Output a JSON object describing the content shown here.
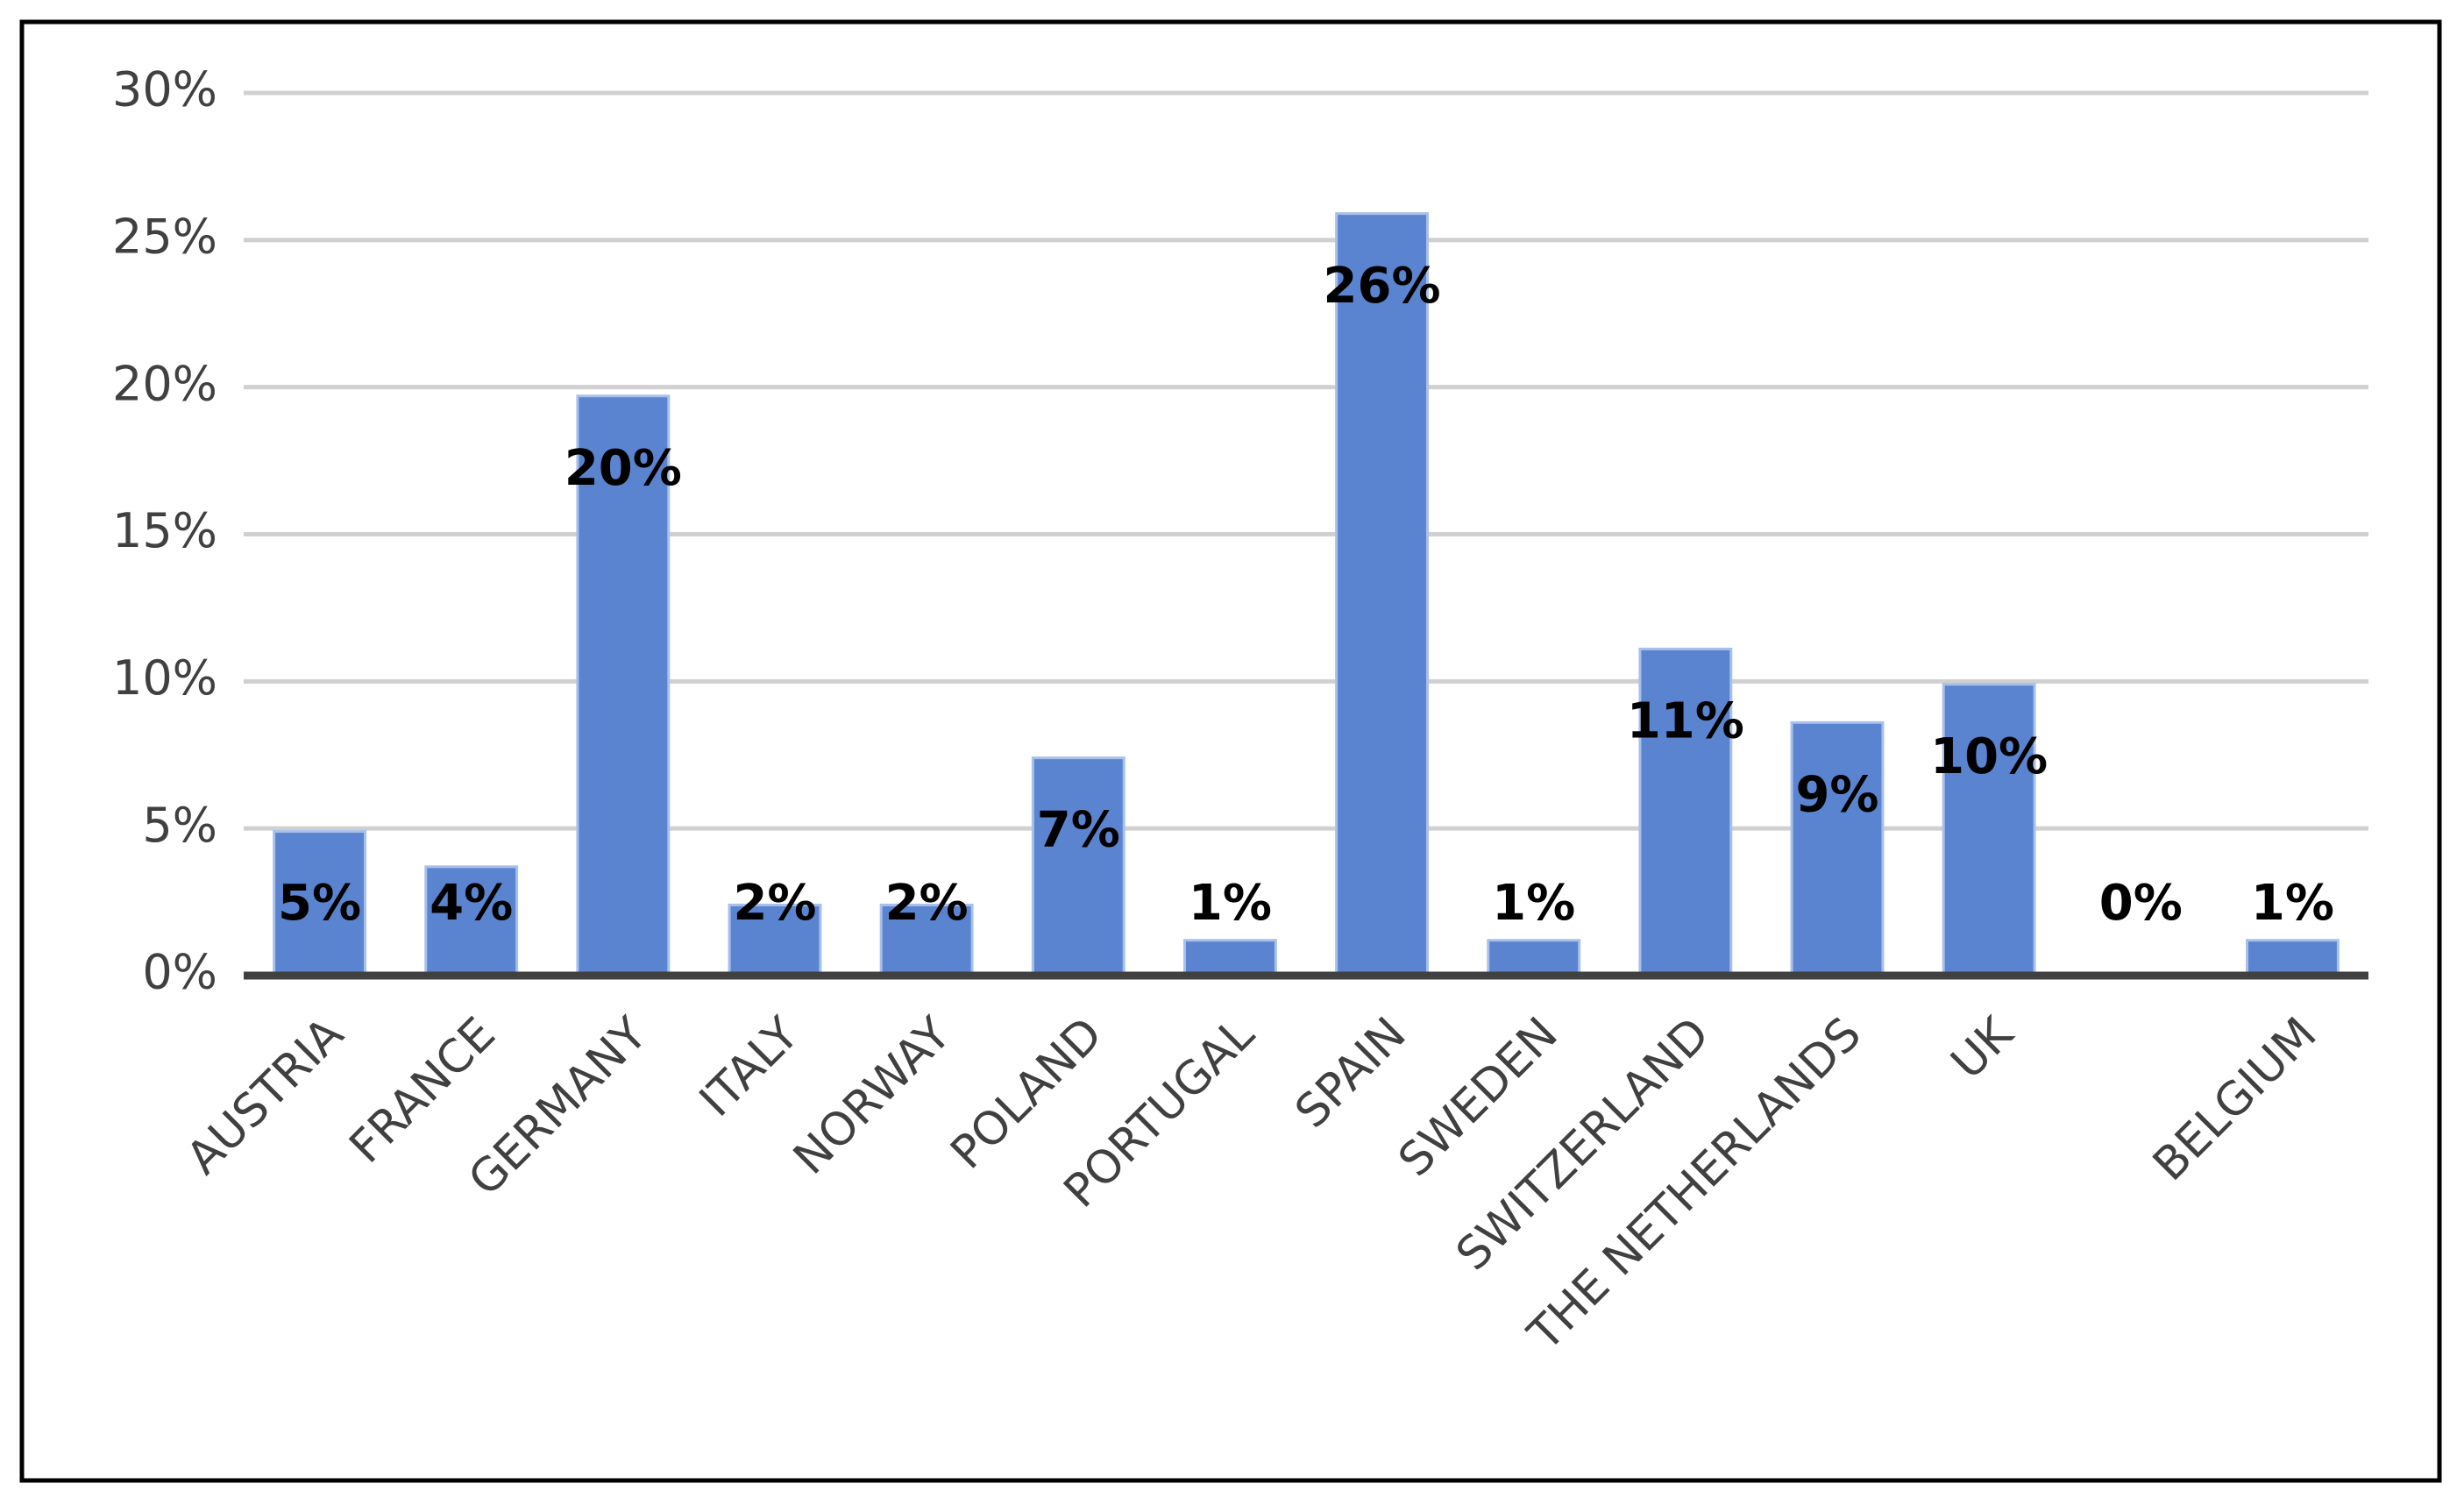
{
  "chart_data": {
    "type": "bar",
    "categories": [
      "AUSTRIA",
      "FRANCE",
      "GERMANY",
      "ITALY",
      "NORWAY",
      "POLAND",
      "PORTUGAL",
      "SPAIN",
      "SWEDEN",
      "SWITZERLAND",
      "THE NETHERLANDS",
      "UK",
      null,
      "BELGIUM"
    ],
    "values": [
      4.9,
      3.7,
      19.7,
      2.4,
      2.4,
      7.4,
      1.2,
      25.9,
      1.2,
      11.1,
      8.6,
      9.9,
      0,
      1.2
    ],
    "value_labels": [
      "5%",
      "4%",
      "20%",
      "2%",
      "2%",
      "7%",
      "1%",
      "26%",
      "1%",
      "11%",
      "9%",
      "10%",
      "0%",
      "1%"
    ],
    "color": "#5b84d0",
    "ylim": [
      0,
      30
    ],
    "yticks": [
      {
        "value": 0,
        "label": "0%"
      },
      {
        "value": 5,
        "label": "5%"
      },
      {
        "value": 10,
        "label": "10%"
      },
      {
        "value": 15,
        "label": "15%"
      },
      {
        "value": 20,
        "label": "20%"
      },
      {
        "value": 25,
        "label": "25%"
      },
      {
        "value": 30,
        "label": "30%"
      }
    ],
    "grid": true
  }
}
